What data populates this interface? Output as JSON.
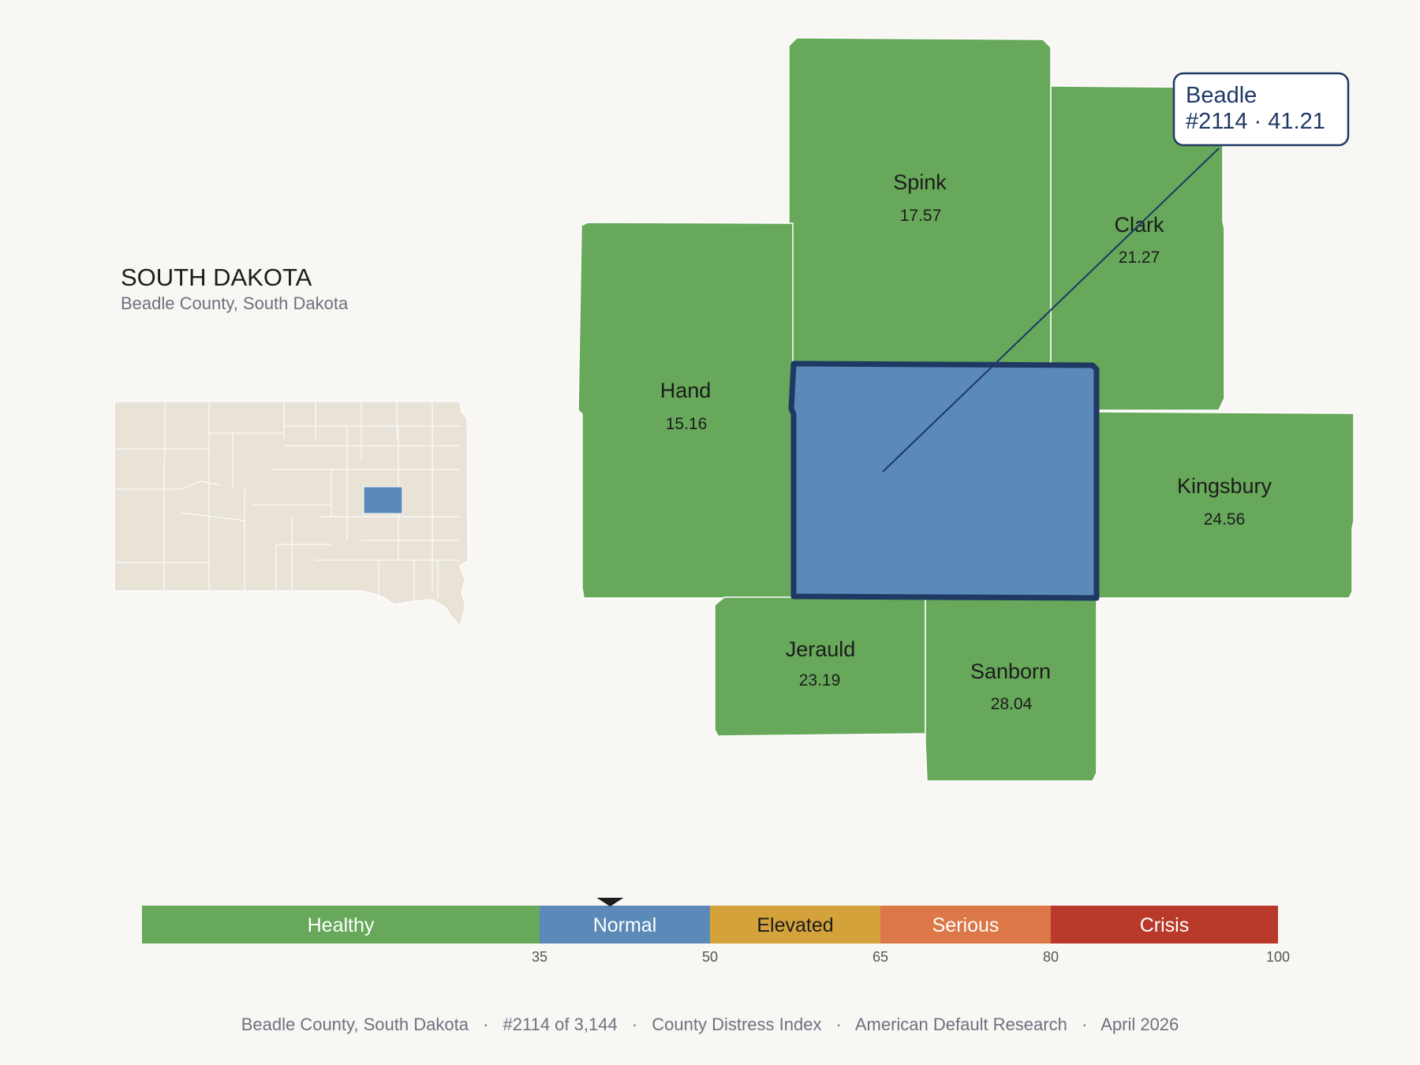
{
  "state": {
    "title": "SOUTH DAKOTA",
    "subtitle": "Beadle County, South Dakota"
  },
  "colors": {
    "healthy": "#67a85a",
    "normal": "#5b89b8",
    "elevated": "#d4a23a",
    "serious": "#dc7748",
    "crisis": "#b93a2b",
    "border": "#1f3864",
    "inset_land": "#e8e2d7",
    "background": "#f9f7f3"
  },
  "counties": [
    {
      "name": "Spink",
      "value": "17.57",
      "status": "healthy"
    },
    {
      "name": "Clark",
      "value": "21.27",
      "status": "healthy"
    },
    {
      "name": "Hand",
      "value": "15.16",
      "status": "healthy"
    },
    {
      "name": "Kingsbury",
      "value": "24.56",
      "status": "healthy"
    },
    {
      "name": "Jerauld",
      "value": "23.19",
      "status": "healthy"
    },
    {
      "name": "Sanborn",
      "value": "28.04",
      "status": "healthy"
    }
  ],
  "focus": {
    "name": "Beadle",
    "rank_value": "#2114 · 41.21",
    "status": "normal",
    "value": 41.21
  },
  "legend": {
    "bands": [
      {
        "label": "Healthy",
        "from": 0,
        "to": 35,
        "color": "#67a85a",
        "text_color": "#ffffff"
      },
      {
        "label": "Normal",
        "from": 35,
        "to": 50,
        "color": "#5b89b8",
        "text_color": "#ffffff"
      },
      {
        "label": "Elevated",
        "from": 50,
        "to": 65,
        "color": "#d4a23a",
        "text_color": "#1c1c1c"
      },
      {
        "label": "Serious",
        "from": 65,
        "to": 80,
        "color": "#dc7748",
        "text_color": "#ffffff"
      },
      {
        "label": "Crisis",
        "from": 80,
        "to": 100,
        "color": "#b93a2b",
        "text_color": "#ffffff"
      }
    ],
    "ticks": [
      "35",
      "50",
      "65",
      "80",
      "100"
    ],
    "marker_value": 41.21
  },
  "footer": {
    "parts": [
      "Beadle County, South Dakota",
      "#2114 of 3,144",
      "County Distress Index",
      "American Default Research",
      "April 2026"
    ],
    "separator": "·"
  }
}
